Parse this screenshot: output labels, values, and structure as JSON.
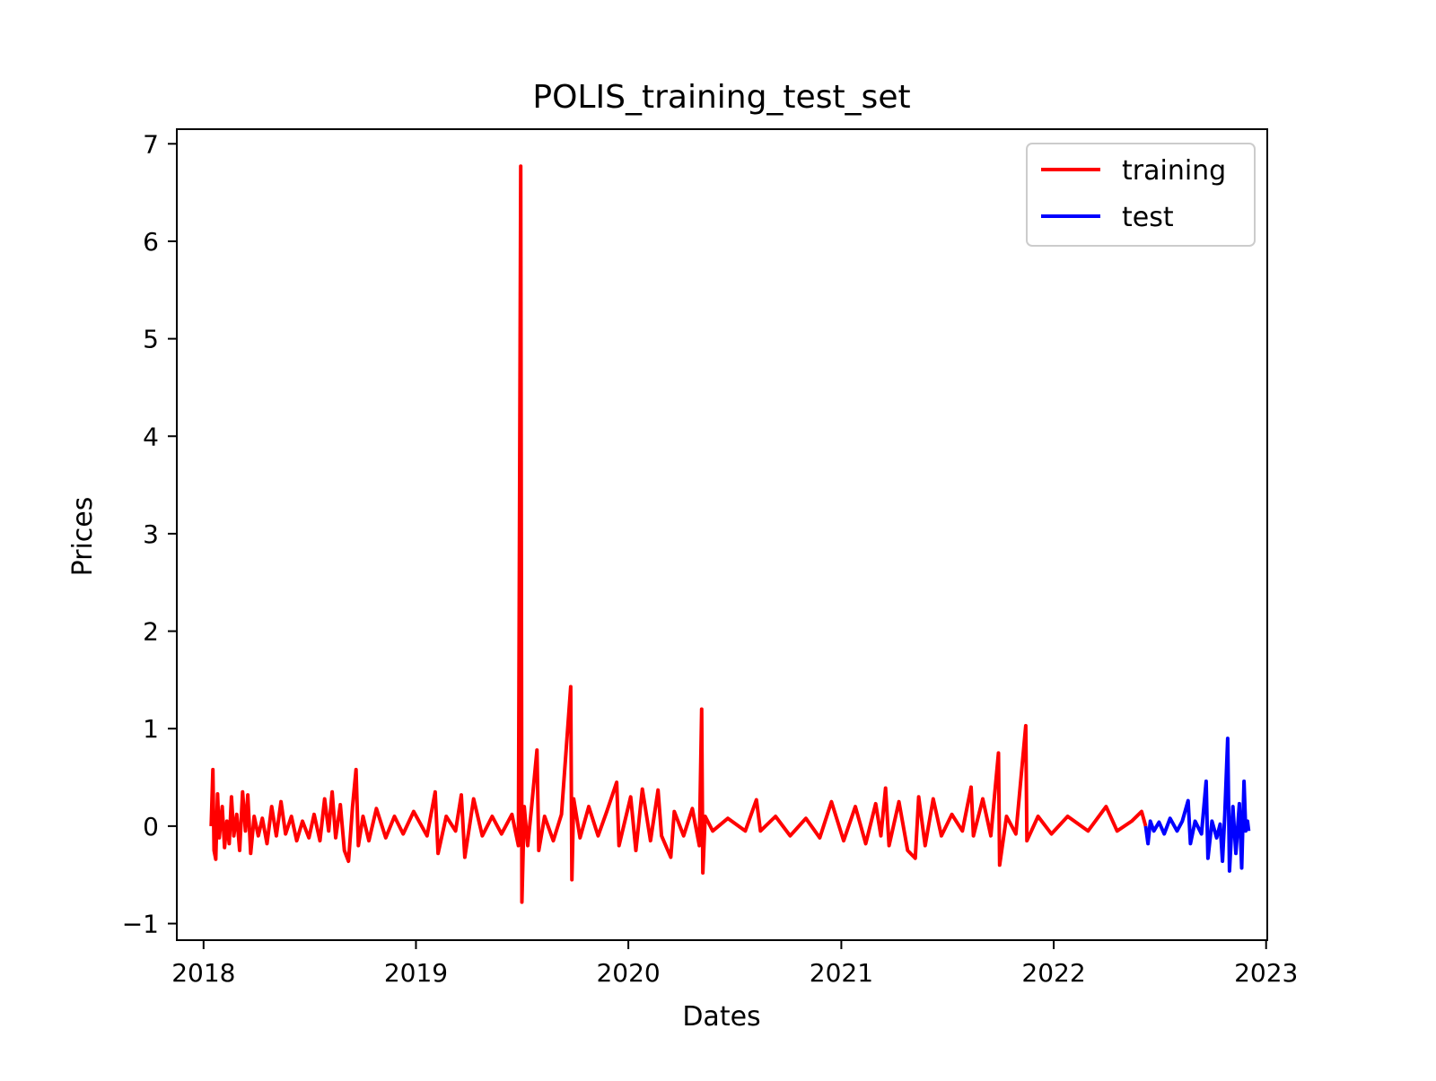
{
  "chart_data": {
    "type": "line",
    "title": "POLIS_training_test_set",
    "xlabel": "Dates",
    "ylabel": "Prices",
    "x_ticks": [
      "2018",
      "2019",
      "2020",
      "2021",
      "2022",
      "2023"
    ],
    "y_ticks": [
      "−1",
      "0",
      "1",
      "2",
      "3",
      "4",
      "5",
      "6",
      "7"
    ],
    "xlim": [
      "2017-11-16",
      "2023-01-03"
    ],
    "ylim": [
      -1.17,
      7.15
    ],
    "grid": false,
    "legend": {
      "position": "top-right"
    },
    "series": [
      {
        "name": "training",
        "color": "#ff0000",
        "points": [
          [
            "2018-01-14",
            0.0
          ],
          [
            "2018-01-17",
            0.58
          ],
          [
            "2018-01-19",
            -0.25
          ],
          [
            "2018-01-22",
            -0.34
          ],
          [
            "2018-01-25",
            0.33
          ],
          [
            "2018-01-28",
            -0.12
          ],
          [
            "2018-02-02",
            0.2
          ],
          [
            "2018-02-06",
            -0.22
          ],
          [
            "2018-02-10",
            0.05
          ],
          [
            "2018-02-14",
            -0.18
          ],
          [
            "2018-02-18",
            0.3
          ],
          [
            "2018-02-22",
            -0.1
          ],
          [
            "2018-02-27",
            0.12
          ],
          [
            "2018-03-04",
            -0.25
          ],
          [
            "2018-03-09",
            0.35
          ],
          [
            "2018-03-14",
            -0.05
          ],
          [
            "2018-03-18",
            0.32
          ],
          [
            "2018-03-23",
            -0.28
          ],
          [
            "2018-03-29",
            0.1
          ],
          [
            "2018-04-05",
            -0.1
          ],
          [
            "2018-04-12",
            0.08
          ],
          [
            "2018-04-20",
            -0.18
          ],
          [
            "2018-04-28",
            0.2
          ],
          [
            "2018-05-06",
            -0.1
          ],
          [
            "2018-05-14",
            0.25
          ],
          [
            "2018-05-22",
            -0.08
          ],
          [
            "2018-06-01",
            0.1
          ],
          [
            "2018-06-10",
            -0.15
          ],
          [
            "2018-06-20",
            0.05
          ],
          [
            "2018-07-01",
            -0.12
          ],
          [
            "2018-07-10",
            0.12
          ],
          [
            "2018-07-20",
            -0.15
          ],
          [
            "2018-07-28",
            0.28
          ],
          [
            "2018-08-04",
            -0.05
          ],
          [
            "2018-08-10",
            0.35
          ],
          [
            "2018-08-16",
            -0.12
          ],
          [
            "2018-08-24",
            0.22
          ],
          [
            "2018-08-31",
            -0.25
          ],
          [
            "2018-09-07",
            -0.36
          ],
          [
            "2018-09-14",
            0.2
          ],
          [
            "2018-09-20",
            0.58
          ],
          [
            "2018-09-24",
            -0.2
          ],
          [
            "2018-10-02",
            0.1
          ],
          [
            "2018-10-12",
            -0.15
          ],
          [
            "2018-10-25",
            0.18
          ],
          [
            "2018-11-10",
            -0.12
          ],
          [
            "2018-11-25",
            0.1
          ],
          [
            "2018-12-10",
            -0.08
          ],
          [
            "2018-12-28",
            0.15
          ],
          [
            "2019-01-20",
            -0.1
          ],
          [
            "2019-02-03",
            0.35
          ],
          [
            "2019-02-08",
            -0.28
          ],
          [
            "2019-02-22",
            0.1
          ],
          [
            "2019-03-10",
            -0.05
          ],
          [
            "2019-03-20",
            0.32
          ],
          [
            "2019-03-26",
            -0.32
          ],
          [
            "2019-04-10",
            0.28
          ],
          [
            "2019-04-25",
            -0.1
          ],
          [
            "2019-05-12",
            0.1
          ],
          [
            "2019-05-28",
            -0.08
          ],
          [
            "2019-06-15",
            0.12
          ],
          [
            "2019-06-26",
            -0.2
          ],
          [
            "2019-06-30",
            6.77
          ],
          [
            "2019-07-02",
            -0.78
          ],
          [
            "2019-07-06",
            0.2
          ],
          [
            "2019-07-12",
            -0.2
          ],
          [
            "2019-07-18",
            0.15
          ],
          [
            "2019-07-28",
            0.78
          ],
          [
            "2019-07-31",
            -0.25
          ],
          [
            "2019-08-10",
            0.1
          ],
          [
            "2019-08-25",
            -0.15
          ],
          [
            "2019-09-08",
            0.12
          ],
          [
            "2019-09-24",
            1.43
          ],
          [
            "2019-09-26",
            -0.55
          ],
          [
            "2019-09-29",
            0.28
          ],
          [
            "2019-10-10",
            -0.12
          ],
          [
            "2019-10-25",
            0.2
          ],
          [
            "2019-11-10",
            -0.1
          ],
          [
            "2019-11-25",
            0.15
          ],
          [
            "2019-12-12",
            0.45
          ],
          [
            "2019-12-16",
            -0.2
          ],
          [
            "2020-01-05",
            0.3
          ],
          [
            "2020-01-14",
            -0.25
          ],
          [
            "2020-01-25",
            0.38
          ],
          [
            "2020-02-08",
            -0.15
          ],
          [
            "2020-02-21",
            0.37
          ],
          [
            "2020-02-27",
            -0.1
          ],
          [
            "2020-03-14",
            -0.32
          ],
          [
            "2020-03-20",
            0.15
          ],
          [
            "2020-04-05",
            -0.1
          ],
          [
            "2020-04-20",
            0.18
          ],
          [
            "2020-05-02",
            -0.2
          ],
          [
            "2020-05-06",
            1.2
          ],
          [
            "2020-05-08",
            -0.48
          ],
          [
            "2020-05-12",
            0.1
          ],
          [
            "2020-05-25",
            -0.05
          ],
          [
            "2020-06-20",
            0.08
          ],
          [
            "2020-07-20",
            -0.05
          ],
          [
            "2020-08-08",
            0.27
          ],
          [
            "2020-08-15",
            -0.05
          ],
          [
            "2020-09-10",
            0.1
          ],
          [
            "2020-10-05",
            -0.1
          ],
          [
            "2020-11-01",
            0.08
          ],
          [
            "2020-11-25",
            -0.12
          ],
          [
            "2020-12-15",
            0.25
          ],
          [
            "2021-01-05",
            -0.15
          ],
          [
            "2021-01-25",
            0.2
          ],
          [
            "2021-02-12",
            -0.18
          ],
          [
            "2021-03-01",
            0.23
          ],
          [
            "2021-03-10",
            -0.1
          ],
          [
            "2021-03-18",
            0.39
          ],
          [
            "2021-03-24",
            -0.2
          ],
          [
            "2021-04-10",
            0.25
          ],
          [
            "2021-04-25",
            -0.25
          ],
          [
            "2021-05-08",
            -0.33
          ],
          [
            "2021-05-14",
            0.3
          ],
          [
            "2021-05-25",
            -0.2
          ],
          [
            "2021-06-08",
            0.28
          ],
          [
            "2021-06-22",
            -0.1
          ],
          [
            "2021-07-10",
            0.12
          ],
          [
            "2021-07-28",
            -0.05
          ],
          [
            "2021-08-12",
            0.4
          ],
          [
            "2021-08-16",
            -0.1
          ],
          [
            "2021-09-01",
            0.28
          ],
          [
            "2021-09-15",
            -0.1
          ],
          [
            "2021-09-28",
            0.75
          ],
          [
            "2021-09-30",
            -0.4
          ],
          [
            "2021-10-12",
            0.1
          ],
          [
            "2021-10-28",
            -0.08
          ],
          [
            "2021-11-14",
            1.03
          ],
          [
            "2021-11-16",
            -0.15
          ],
          [
            "2021-12-05",
            0.1
          ],
          [
            "2021-12-28",
            -0.08
          ],
          [
            "2022-01-25",
            0.1
          ],
          [
            "2022-03-01",
            -0.05
          ],
          [
            "2022-04-01",
            0.2
          ],
          [
            "2022-04-20",
            -0.05
          ],
          [
            "2022-05-15",
            0.05
          ],
          [
            "2022-06-01",
            0.15
          ],
          [
            "2022-06-08",
            0.0
          ]
        ]
      },
      {
        "name": "test",
        "color": "#0000ff",
        "points": [
          [
            "2022-06-08",
            0.0
          ],
          [
            "2022-06-12",
            -0.18
          ],
          [
            "2022-06-16",
            0.05
          ],
          [
            "2022-06-22",
            -0.05
          ],
          [
            "2022-07-01",
            0.04
          ],
          [
            "2022-07-10",
            -0.08
          ],
          [
            "2022-07-20",
            0.08
          ],
          [
            "2022-08-01",
            -0.05
          ],
          [
            "2022-08-10",
            0.05
          ],
          [
            "2022-08-20",
            0.26
          ],
          [
            "2022-08-24",
            -0.18
          ],
          [
            "2022-09-01",
            0.05
          ],
          [
            "2022-09-12",
            -0.08
          ],
          [
            "2022-09-20",
            0.46
          ],
          [
            "2022-09-23",
            -0.33
          ],
          [
            "2022-09-30",
            0.05
          ],
          [
            "2022-10-08",
            -0.12
          ],
          [
            "2022-10-14",
            0.02
          ],
          [
            "2022-10-18",
            -0.36
          ],
          [
            "2022-10-22",
            0.12
          ],
          [
            "2022-10-27",
            0.9
          ],
          [
            "2022-10-30",
            -0.46
          ],
          [
            "2022-11-05",
            0.2
          ],
          [
            "2022-11-10",
            -0.28
          ],
          [
            "2022-11-16",
            0.23
          ],
          [
            "2022-11-20",
            -0.43
          ],
          [
            "2022-11-24",
            0.46
          ],
          [
            "2022-11-27",
            -0.05
          ],
          [
            "2022-11-30",
            0.05
          ],
          [
            "2022-12-02",
            -0.05
          ]
        ]
      }
    ]
  }
}
